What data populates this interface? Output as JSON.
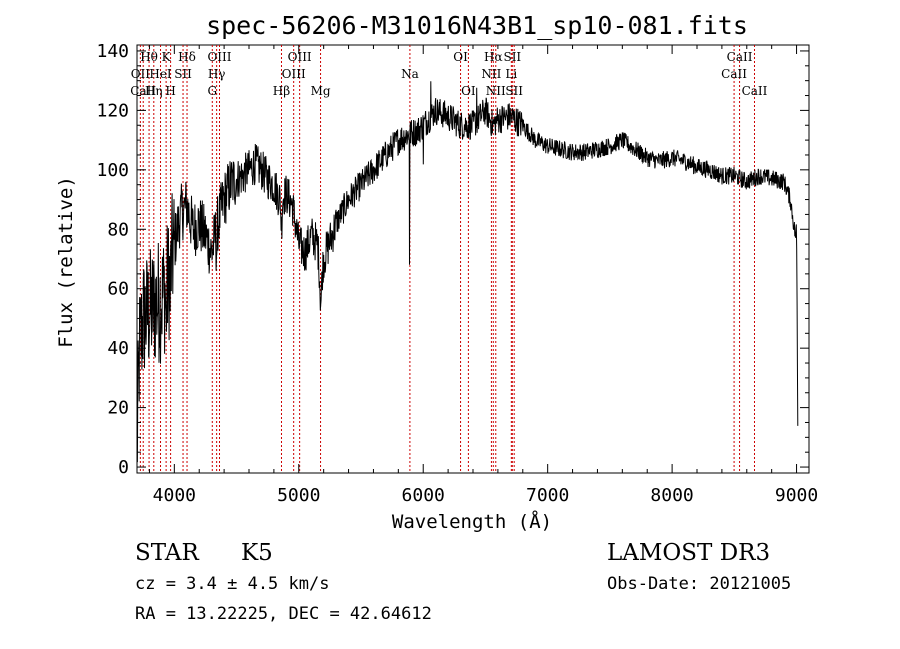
{
  "chart_data": {
    "type": "line",
    "title": "spec-56206-M31016N43B1_sp10-081.fits",
    "xlabel": "Wavelength (Å)",
    "ylabel": "Flux (relative)",
    "xlim": [
      3700,
      9100
    ],
    "ylim": [
      -2,
      142
    ],
    "x_ticks": [
      4000,
      5000,
      6000,
      7000,
      8000,
      9000
    ],
    "y_ticks": [
      0,
      20,
      40,
      60,
      80,
      100,
      120,
      140
    ],
    "series": [
      {
        "name": "flux",
        "color": "#000000",
        "anchors": [
          [
            3700,
            5
          ],
          [
            3720,
            40
          ],
          [
            3750,
            50
          ],
          [
            3800,
            52
          ],
          [
            3850,
            55
          ],
          [
            3900,
            57
          ],
          [
            3950,
            62
          ],
          [
            4000,
            75
          ],
          [
            4050,
            85
          ],
          [
            4100,
            88
          ],
          [
            4150,
            80
          ],
          [
            4200,
            82
          ],
          [
            4250,
            78
          ],
          [
            4300,
            72
          ],
          [
            4350,
            82
          ],
          [
            4400,
            90
          ],
          [
            4450,
            95
          ],
          [
            4500,
            97
          ],
          [
            4550,
            98
          ],
          [
            4600,
            100
          ],
          [
            4650,
            102
          ],
          [
            4700,
            100
          ],
          [
            4750,
            97
          ],
          [
            4800,
            95
          ],
          [
            4850,
            90
          ],
          [
            4900,
            92
          ],
          [
            4950,
            88
          ],
          [
            5000,
            75
          ],
          [
            5050,
            72
          ],
          [
            5100,
            78
          ],
          [
            5150,
            75
          ],
          [
            5180,
            62
          ],
          [
            5200,
            70
          ],
          [
            5300,
            82
          ],
          [
            5400,
            90
          ],
          [
            5500,
            95
          ],
          [
            5600,
            100
          ],
          [
            5700,
            105
          ],
          [
            5800,
            110
          ],
          [
            5880,
            112
          ],
          [
            5950,
            113
          ],
          [
            6000,
            115
          ],
          [
            6100,
            120
          ],
          [
            6200,
            118
          ],
          [
            6300,
            115
          ],
          [
            6400,
            115
          ],
          [
            6500,
            120
          ],
          [
            6560,
            115
          ],
          [
            6600,
            117
          ],
          [
            6700,
            118
          ],
          [
            6800,
            115
          ],
          [
            6900,
            110
          ],
          [
            7000,
            108
          ],
          [
            7100,
            107
          ],
          [
            7200,
            106
          ],
          [
            7300,
            106
          ],
          [
            7400,
            107
          ],
          [
            7500,
            108
          ],
          [
            7600,
            110
          ],
          [
            7700,
            107
          ],
          [
            7800,
            104
          ],
          [
            7900,
            103
          ],
          [
            8000,
            104
          ],
          [
            8100,
            103
          ],
          [
            8200,
            101
          ],
          [
            8300,
            100
          ],
          [
            8400,
            98
          ],
          [
            8500,
            98
          ],
          [
            8600,
            96
          ],
          [
            8700,
            98
          ],
          [
            8800,
            97
          ],
          [
            8900,
            96
          ],
          [
            8950,
            90
          ],
          [
            8990,
            78
          ],
          [
            9000,
            80
          ],
          [
            9010,
            15
          ]
        ],
        "dips": [
          {
            "x": 5890,
            "depth": 42,
            "width": 3
          },
          {
            "x": 4861,
            "depth": 10,
            "width": 10
          },
          {
            "x": 4340,
            "depth": 8,
            "width": 8
          },
          {
            "x": 3934,
            "depth": 15,
            "width": 5
          },
          {
            "x": 3968,
            "depth": 12,
            "width": 5
          },
          {
            "x": 5175,
            "depth": 8,
            "width": 14
          },
          {
            "x": 6000,
            "depth": 20,
            "width": 2
          },
          {
            "x": 6060,
            "depth": -22,
            "width": 2
          },
          {
            "x": 6430,
            "depth": -10,
            "width": 2
          }
        ]
      }
    ],
    "reference_lines": [
      {
        "wavelength": 3727,
        "labels": [
          "OII"
        ],
        "rows": [
          1
        ]
      },
      {
        "wavelength": 3750,
        "labels": [
          "CaII"
        ],
        "rows": [
          2
        ]
      },
      {
        "wavelength": 3797,
        "labels": [
          "Hθ"
        ],
        "rows": [
          0
        ]
      },
      {
        "wavelength": 3835,
        "labels": [
          "Hη"
        ],
        "rows": [
          2
        ]
      },
      {
        "wavelength": 3889,
        "labels": [
          "HeI"
        ],
        "rows": [
          1
        ]
      },
      {
        "wavelength": 3934,
        "labels": [
          "K"
        ],
        "rows": [
          0
        ]
      },
      {
        "wavelength": 3970,
        "labels": [
          "H"
        ],
        "rows": [
          2
        ]
      },
      {
        "wavelength": 4070,
        "labels": [
          "SII"
        ],
        "rows": [
          1
        ]
      },
      {
        "wavelength": 4102,
        "labels": [
          "Hδ"
        ],
        "rows": [
          0
        ]
      },
      {
        "wavelength": 4305,
        "labels": [
          "G"
        ],
        "rows": [
          2
        ]
      },
      {
        "wavelength": 4340,
        "labels": [
          "Hγ"
        ],
        "rows": [
          1
        ]
      },
      {
        "wavelength": 4363,
        "labels": [
          "OIII"
        ],
        "rows": [
          0
        ]
      },
      {
        "wavelength": 4861,
        "labels": [
          "Hβ"
        ],
        "rows": [
          2
        ]
      },
      {
        "wavelength": 4959,
        "labels": [
          "OIII"
        ],
        "rows": [
          1
        ]
      },
      {
        "wavelength": 5007,
        "labels": [
          "OIII"
        ],
        "rows": [
          0
        ]
      },
      {
        "wavelength": 5175,
        "labels": [
          "Mg"
        ],
        "rows": [
          2
        ]
      },
      {
        "wavelength": 5893,
        "labels": [
          "Na"
        ],
        "rows": [
          1
        ]
      },
      {
        "wavelength": 6300,
        "labels": [
          "OI"
        ],
        "rows": [
          0
        ]
      },
      {
        "wavelength": 6363,
        "labels": [
          "OI"
        ],
        "rows": [
          2
        ]
      },
      {
        "wavelength": 6548,
        "labels": [
          "NII"
        ],
        "rows": [
          1
        ]
      },
      {
        "wavelength": 6563,
        "labels": [
          "Hα"
        ],
        "rows": [
          0
        ]
      },
      {
        "wavelength": 6583,
        "labels": [
          "NII"
        ],
        "rows": [
          2
        ]
      },
      {
        "wavelength": 6708,
        "labels": [
          "Li"
        ],
        "rows": [
          1
        ]
      },
      {
        "wavelength": 6716,
        "labels": [
          "SII"
        ],
        "rows": [
          0
        ]
      },
      {
        "wavelength": 6731,
        "labels": [
          "SII"
        ],
        "rows": [
          2
        ]
      },
      {
        "wavelength": 8498,
        "labels": [
          "CaII"
        ],
        "rows": [
          1
        ]
      },
      {
        "wavelength": 8542,
        "labels": [
          "CaII"
        ],
        "rows": [
          0
        ]
      },
      {
        "wavelength": 8662,
        "labels": [
          "CaII"
        ],
        "rows": [
          2
        ]
      }
    ],
    "line_color": "#cc0000"
  },
  "footer": {
    "class_label": "STAR",
    "subclass_label": "K5",
    "cz_text": "cz = 3.4 ± 4.5 km/s",
    "coords_text": "RA =  13.22225, DEC =  42.64612",
    "survey_label": "LAMOST DR3",
    "obs_date_text": "Obs-Date: 20121005"
  }
}
